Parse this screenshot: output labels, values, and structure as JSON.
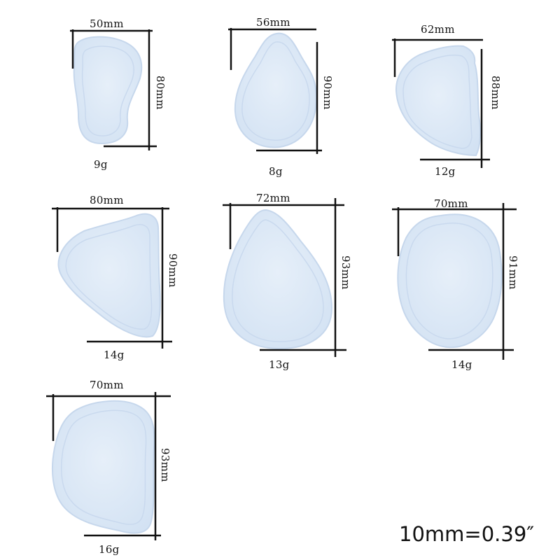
{
  "colors": {
    "pad_fill": "#dde9f7",
    "pad_inner": "#cfdff3",
    "pad_edge": "#c3d5ec",
    "line": "#111111"
  },
  "pads": [
    {
      "width": "50mm",
      "height": "80mm",
      "weight": "9g"
    },
    {
      "width": "56mm",
      "height": "90mm",
      "weight": "8g"
    },
    {
      "width": "62mm",
      "height": "88mm",
      "weight": "12g"
    },
    {
      "width": "80mm",
      "height": "90mm",
      "weight": "14g"
    },
    {
      "width": "72mm",
      "height": "93mm",
      "weight": "13g"
    },
    {
      "width": "70mm",
      "height": "91mm",
      "weight": "14g"
    },
    {
      "width": "70mm",
      "height": "93mm",
      "weight": "16g"
    }
  ],
  "scale_note": "10mm=0.39″"
}
